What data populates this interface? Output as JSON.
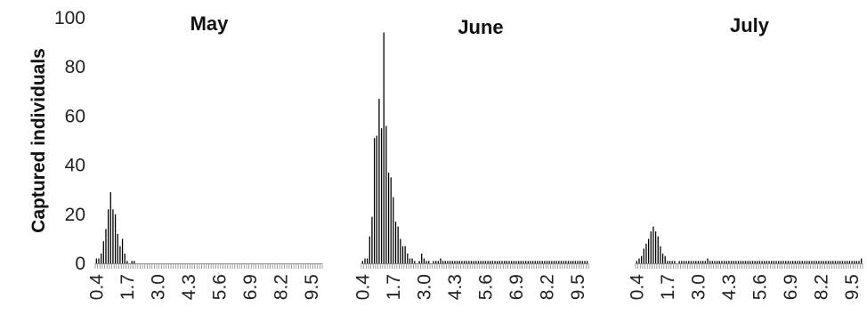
{
  "chart_data": {
    "type": "bar",
    "ylabel": "Captured individuals",
    "xlabel": "",
    "ylim": [
      0,
      100
    ],
    "yticks": [
      "0",
      "20",
      "40",
      "60",
      "80",
      "100"
    ],
    "x_start": 0.4,
    "x_step": 0.1,
    "x_end": 9.9,
    "xtick_labels": [
      "0.4",
      "1.7",
      "3.0",
      "4.3",
      "5.6",
      "6.9",
      "8.2",
      "9.5"
    ],
    "grid": false,
    "panels": [
      {
        "title": "May",
        "values": [
          2,
          2,
          4,
          9,
          14,
          22,
          29,
          22,
          20,
          12,
          7,
          10,
          4,
          1,
          0,
          1,
          1,
          0,
          0,
          0,
          0,
          0,
          0,
          0,
          0,
          0,
          0,
          0,
          0,
          0,
          0,
          0,
          0,
          0,
          0,
          0,
          0,
          0,
          0,
          0,
          0,
          0,
          0,
          0,
          0,
          0,
          0,
          0,
          0,
          0,
          0,
          0,
          0,
          0,
          0,
          0,
          0,
          0,
          0,
          0,
          0,
          0,
          0,
          0,
          0,
          0,
          0,
          0,
          0,
          0,
          0,
          0,
          0,
          0,
          0,
          0,
          0,
          0,
          0,
          0,
          0,
          0,
          0,
          0,
          0,
          0,
          0,
          0,
          0,
          0,
          0,
          0,
          0,
          0,
          0,
          0
        ]
      },
      {
        "title": "June",
        "values": [
          1,
          2,
          2,
          11,
          19,
          51,
          52,
          67,
          55,
          94,
          56,
          37,
          35,
          27,
          17,
          15,
          10,
          7,
          7,
          4,
          2,
          2,
          1,
          0,
          1,
          4,
          2,
          1,
          1,
          0,
          1,
          1,
          1,
          2,
          1,
          1,
          1,
          1,
          1,
          1,
          1,
          1,
          1,
          1,
          1,
          1,
          1,
          1,
          1,
          1,
          1,
          1,
          1,
          1,
          1,
          1,
          1,
          1,
          1,
          1,
          1,
          1,
          1,
          1,
          1,
          1,
          1,
          1,
          1,
          1,
          1,
          1,
          1,
          1,
          1,
          1,
          1,
          1,
          1,
          1,
          1,
          1,
          1,
          1,
          1,
          1,
          1,
          1,
          1,
          1,
          1,
          1,
          1,
          1,
          1,
          1
        ]
      },
      {
        "title": "July",
        "values": [
          1,
          2,
          3,
          6,
          8,
          10,
          13,
          15,
          13,
          11,
          7,
          4,
          3,
          1,
          1,
          1,
          1,
          0,
          1,
          1,
          1,
          1,
          1,
          1,
          1,
          1,
          1,
          1,
          1,
          1,
          2,
          1,
          1,
          1,
          1,
          1,
          1,
          1,
          1,
          1,
          1,
          1,
          1,
          1,
          1,
          1,
          1,
          1,
          1,
          1,
          1,
          1,
          1,
          1,
          1,
          1,
          1,
          1,
          1,
          1,
          1,
          1,
          1,
          1,
          1,
          1,
          1,
          1,
          1,
          1,
          1,
          1,
          1,
          1,
          1,
          1,
          1,
          1,
          1,
          1,
          1,
          1,
          1,
          1,
          1,
          1,
          1,
          1,
          1,
          1,
          1,
          1,
          1,
          1,
          1,
          2
        ]
      }
    ]
  }
}
